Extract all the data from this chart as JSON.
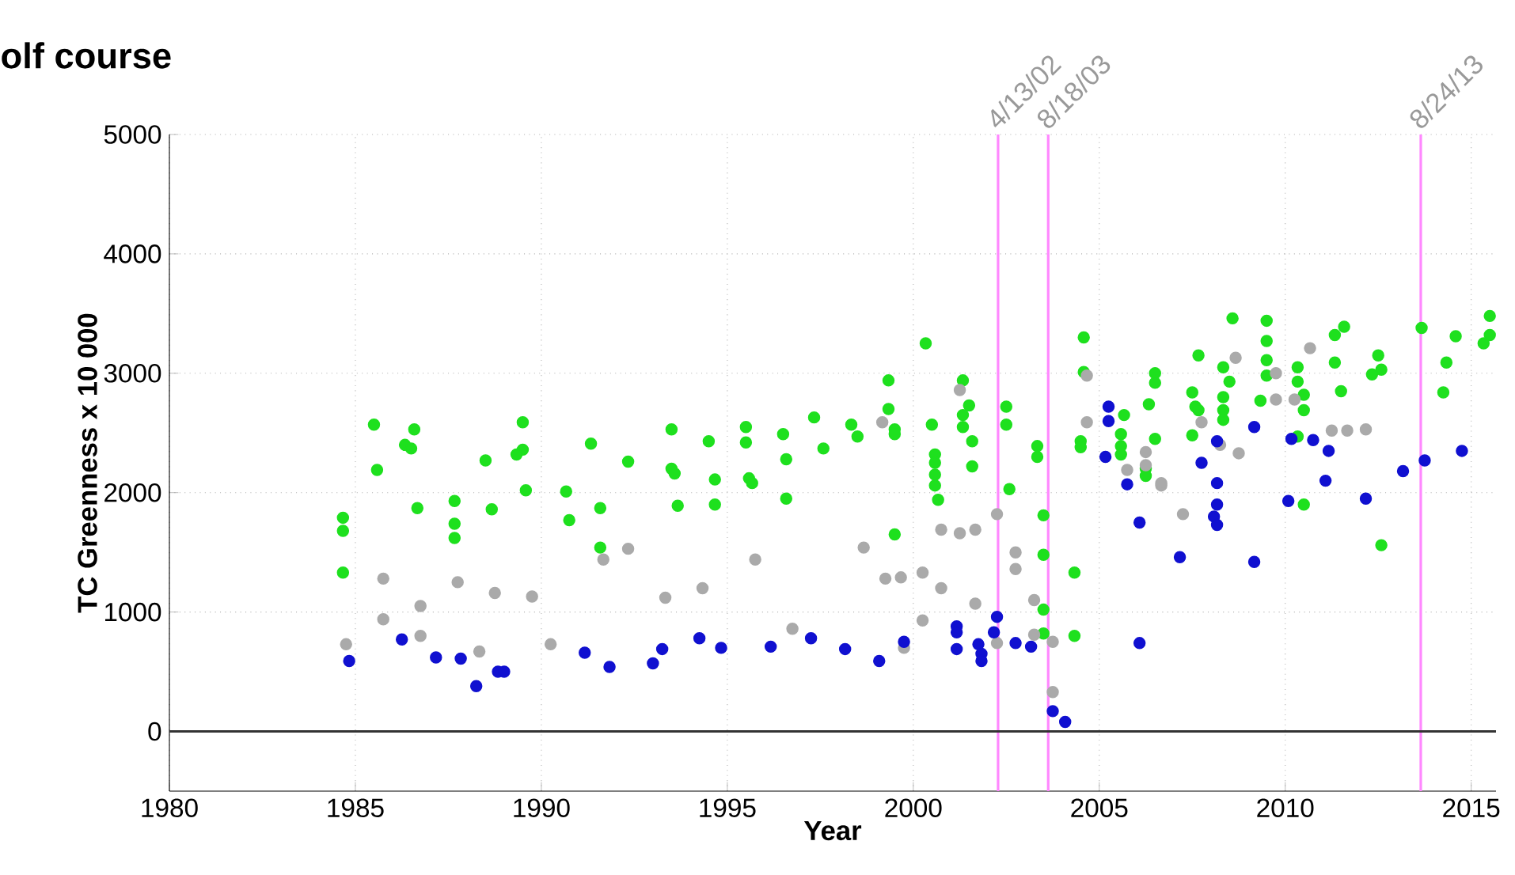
{
  "chart_data": {
    "type": "scatter",
    "title": "olf course",
    "xlabel": "Year",
    "ylabel": "TC Greenness x 10 000",
    "xlim": [
      "1980",
      "2015-09"
    ],
    "ylim": [
      -500,
      5000
    ],
    "xticks": [
      "1980",
      "1985",
      "1990",
      "1995",
      "2000",
      "2005",
      "2010",
      "2015"
    ],
    "yticks": [
      0,
      1000,
      2000,
      3000,
      4000,
      5000
    ],
    "grid": true,
    "marker": "circle",
    "ref_lines": [
      {
        "axis": "x",
        "value": "2002-04-13",
        "label": "4/13/02",
        "color": "#ff88ff"
      },
      {
        "axis": "x",
        "value": "2003-08-18",
        "label": "8/18/03",
        "color": "#ff88ff"
      },
      {
        "axis": "x",
        "value": "2013-08-24",
        "label": "8/24/13",
        "color": "#ff88ff"
      },
      {
        "axis": "y",
        "value": 0,
        "color": "#333333"
      }
    ],
    "series": [
      {
        "color": "#1ee01e",
        "x": [
          "1984-09",
          "1984-09",
          "1984-09",
          "1985-07",
          "1985-08",
          "1986-08",
          "1986-05",
          "1986-07",
          "1986-09",
          "1987-09",
          "1987-09",
          "1987-09",
          "1988-07",
          "1988-09",
          "1989-07",
          "1989-07",
          "1989-05",
          "1989-08",
          "1990-09",
          "1990-10",
          "1991-05",
          "1991-08",
          "1991-08",
          "1992-05",
          "1993-07",
          "1993-07",
          "1993-08",
          "1993-09",
          "1994-07",
          "1994-09",
          "1994-09",
          "1995-07",
          "1995-07",
          "1995-08",
          "1995-09",
          "1996-07",
          "1996-08",
          "1996-08",
          "1997-05",
          "1997-08",
          "1998-05",
          "1998-07",
          "1999-05",
          "1999-05",
          "1999-07",
          "1999-07",
          "1999-07",
          "2000-05",
          "2000-07",
          "2000-08",
          "2000-08",
          "2000-08",
          "2000-08",
          "2000-09",
          "2001-05",
          "2001-07",
          "2001-05",
          "2001-05",
          "2001-08",
          "2001-08",
          "2002-07",
          "2002-07",
          "2002-08",
          "2003-05",
          "2003-05",
          "2003-07",
          "2003-07",
          "2003-07",
          "2003-07",
          "2004-05",
          "2004-05",
          "2004-08",
          "2004-08",
          "2004-07",
          "2004-07",
          "2005-09",
          "2005-08",
          "2005-08",
          "2005-08",
          "2006-04",
          "2006-04",
          "2006-07",
          "2006-07",
          "2006-05",
          "2006-07",
          "2007-07",
          "2007-08",
          "2007-09",
          "2007-07",
          "2007-09",
          "2008-08",
          "2008-05",
          "2008-07",
          "2008-05",
          "2008-05",
          "2008-05",
          "2009-07",
          "2009-07",
          "2009-07",
          "2009-07",
          "2009-05",
          "2010-05",
          "2010-05",
          "2010-07",
          "2010-07",
          "2010-05",
          "2010-07",
          "2011-05",
          "2011-08",
          "2011-05",
          "2011-07",
          "2012-07",
          "2012-08",
          "2012-05",
          "2012-08",
          "2013-09",
          "2014-08",
          "2014-05",
          "2014-04",
          "2015-07",
          "2015-07",
          "2015-05"
        ],
        "values": [
          1790,
          1680,
          1330,
          2570,
          2190,
          2530,
          2400,
          2370,
          1870,
          1930,
          1740,
          1620,
          2270,
          1860,
          2590,
          2360,
          2320,
          2020,
          2010,
          1770,
          2410,
          1870,
          1540,
          2260,
          2530,
          2200,
          2160,
          1890,
          2430,
          2110,
          1900,
          2550,
          2420,
          2120,
          2080,
          2490,
          2280,
          1950,
          2630,
          2370,
          2570,
          2470,
          2940,
          2700,
          2530,
          2490,
          1650,
          3250,
          2570,
          2320,
          2250,
          2150,
          2060,
          1940,
          2940,
          2730,
          2650,
          2550,
          2430,
          2220,
          2720,
          2570,
          2030,
          2390,
          2300,
          1810,
          1480,
          1020,
          820,
          1330,
          800,
          3300,
          3010,
          2430,
          2380,
          2650,
          2490,
          2390,
          2320,
          2200,
          2140,
          3000,
          2920,
          2740,
          2450,
          2840,
          2720,
          2690,
          2480,
          3150,
          3460,
          3050,
          2930,
          2800,
          2690,
          2610,
          3440,
          3270,
          3110,
          2980,
          2770,
          3050,
          2930,
          2820,
          2690,
          2470,
          1900,
          3320,
          3390,
          3090,
          2850,
          3150,
          3030,
          2990,
          1560,
          3380,
          3310,
          3090,
          2840,
          3480,
          3320,
          3250
        ]
      },
      {
        "color": "#aaaaaa",
        "x": [
          "1984-10",
          "1985-10",
          "1985-10",
          "1986-10",
          "1986-10",
          "1987-10",
          "1988-05",
          "1988-10",
          "1989-10",
          "1990-04",
          "1991-09",
          "1992-05",
          "1993-05",
          "1994-05",
          "1995-10",
          "1996-10",
          "1998-09",
          "1999-04",
          "1999-09",
          "1999-10",
          "1999-03",
          "2000-04",
          "2000-04",
          "2000-10",
          "2000-10",
          "2001-04",
          "2001-04",
          "2001-09",
          "2001-09",
          "2002-04",
          "2002-10",
          "2002-10",
          "2003-04",
          "2002-04",
          "2003-04",
          "2003-10",
          "2003-10",
          "2004-09",
          "2004-09",
          "2006-04",
          "2005-10",
          "2006-04",
          "2006-09",
          "2006-09",
          "2007-04",
          "2007-10",
          "2008-09",
          "2008-10",
          "2008-04",
          "2009-10",
          "2009-10",
          "2010-04",
          "2010-09",
          "2011-04",
          "2011-09",
          "2012-03"
        ],
        "values": [
          730,
          1280,
          940,
          1050,
          800,
          1250,
          670,
          1160,
          1130,
          730,
          1440,
          1530,
          1120,
          1200,
          1440,
          860,
          1540,
          1280,
          1290,
          700,
          2590,
          1330,
          930,
          1690,
          1200,
          1660,
          2860,
          1690,
          1070,
          1820,
          1500,
          1360,
          1100,
          740,
          810,
          750,
          330,
          2590,
          2980,
          2340,
          2190,
          2230,
          2060,
          2080,
          1820,
          2590,
          3130,
          2330,
          2400,
          2780,
          3000,
          2780,
          3210,
          2520,
          2520,
          2530
        ]
      },
      {
        "color": "#1010d0",
        "x": [
          "1984-11",
          "1986-04",
          "1987-03",
          "1987-11",
          "1988-04",
          "1988-11",
          "1989-01",
          "1991-03",
          "1991-11",
          "1993-01",
          "1993-04",
          "1994-04",
          "1994-11",
          "1996-03",
          "1997-04",
          "1998-03",
          "1999-02",
          "1999-10",
          "2001-03",
          "2001-03",
          "2001-03",
          "2001-10",
          "2001-11",
          "2001-11",
          "2002-04",
          "2002-03",
          "2002-10",
          "2003-03",
          "2003-10",
          "2004-02",
          "2005-04",
          "2005-04",
          "2005-03",
          "2005-10",
          "2006-02",
          "2006-02",
          "2007-03",
          "2007-10",
          "2008-03",
          "2008-03",
          "2008-03",
          "2008-02",
          "2008-03",
          "2009-03",
          "2009-03",
          "2010-02",
          "2010-03",
          "2010-10",
          "2011-03",
          "2011-02",
          "2012-03",
          "2013-03",
          "2013-10",
          "2014-10"
        ],
        "values": [
          590,
          770,
          620,
          610,
          380,
          500,
          500,
          660,
          540,
          570,
          690,
          780,
          700,
          710,
          780,
          690,
          590,
          750,
          880,
          830,
          690,
          730,
          650,
          590,
          960,
          830,
          740,
          710,
          170,
          80,
          2720,
          2600,
          2300,
          2070,
          1750,
          740,
          1460,
          2250,
          2430,
          2080,
          1900,
          1800,
          1730,
          1420,
          2550,
          1930,
          2450,
          2440,
          2350,
          2100,
          1950,
          2180,
          2270,
          2350
        ]
      }
    ]
  }
}
